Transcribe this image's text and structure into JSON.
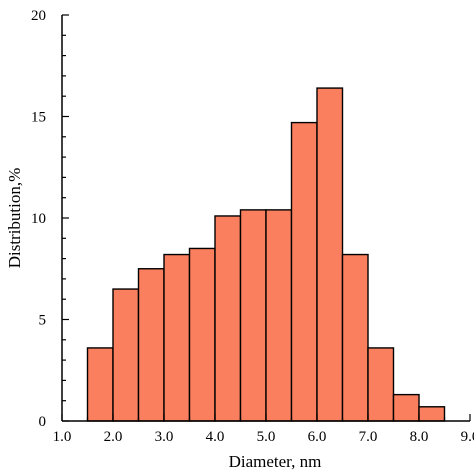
{
  "chart_data": {
    "type": "bar",
    "title": "",
    "xlabel": "Diameter, nm",
    "ylabel": "Distribution,%",
    "xlim": [
      1.0,
      9.0
    ],
    "ylim": [
      0,
      20
    ],
    "bin_width": 0.5,
    "x_ticks": [
      "1.0",
      "2.0",
      "3.0",
      "4.0",
      "5.0",
      "6.0",
      "7.0",
      "8.0",
      "9.0"
    ],
    "x_tick_values": [
      1,
      2,
      3,
      4,
      5,
      6,
      7,
      8,
      9
    ],
    "y_ticks": [
      "0",
      "5",
      "10",
      "15",
      "20"
    ],
    "y_tick_values": [
      0,
      5,
      10,
      15,
      20
    ],
    "bin_starts": [
      1.5,
      2.0,
      2.5,
      3.0,
      3.5,
      4.0,
      4.5,
      5.0,
      5.5,
      6.0,
      6.5,
      7.0,
      7.5,
      8.0
    ],
    "values": [
      3.6,
      6.5,
      7.5,
      8.2,
      8.5,
      10.1,
      10.4,
      10.4,
      14.7,
      16.4,
      8.2,
      3.6,
      1.3,
      0.7
    ],
    "bar_color": "#fa7f5e",
    "edge_color": "#000000",
    "grid": false,
    "legend": "none"
  }
}
